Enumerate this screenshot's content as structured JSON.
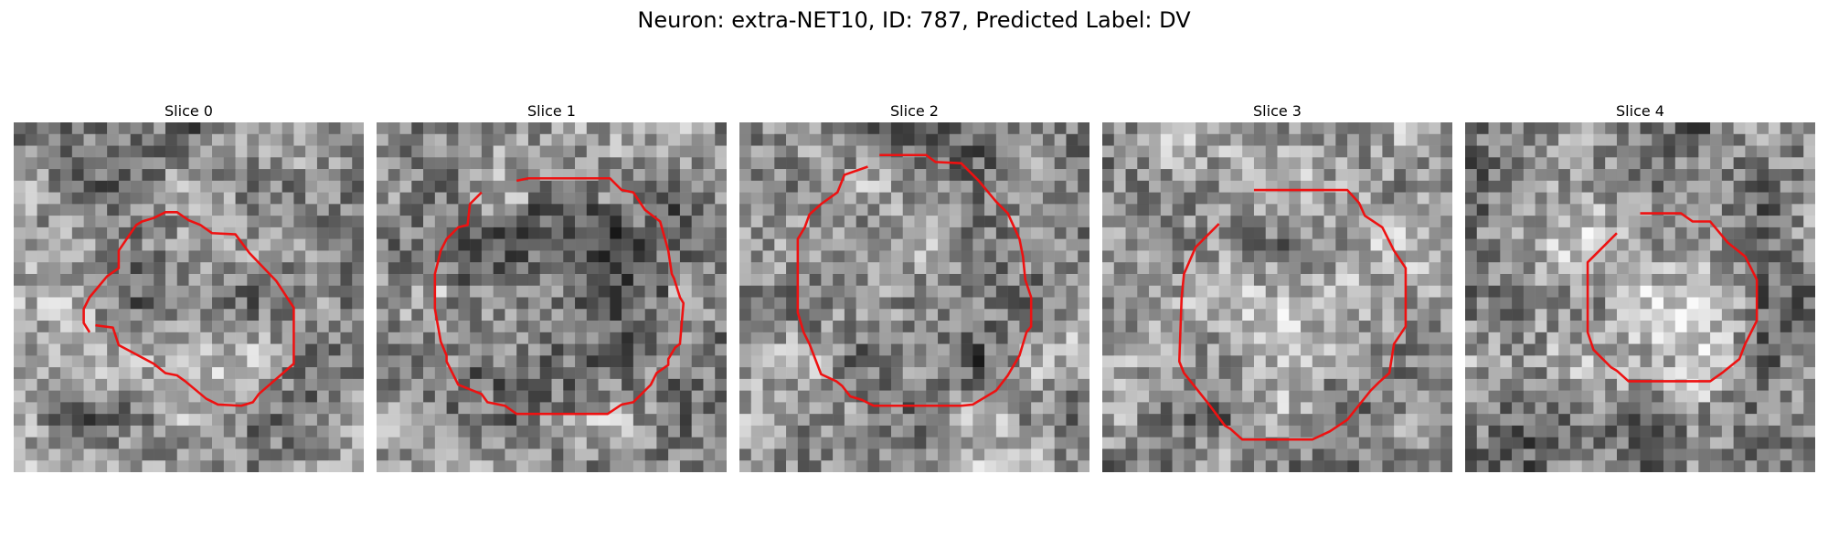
{
  "figure": {
    "title": "Neuron: extra-NET10, ID: 787, Predicted Label: DV"
  },
  "contour_color": "#ee1111",
  "colormap": "grayscale",
  "slices": [
    {
      "title": "Slice 0",
      "seed": 11,
      "darken_inside": 0.0
    },
    {
      "title": "Slice 1",
      "seed": 23,
      "darken_inside": 0.18
    },
    {
      "title": "Slice 2",
      "seed": 37,
      "darken_inside": 0.05
    },
    {
      "title": "Slice 3",
      "seed": 51,
      "darken_inside": 0.0
    },
    {
      "title": "Slice 4",
      "seed": 67,
      "darken_inside": -0.08
    }
  ]
}
